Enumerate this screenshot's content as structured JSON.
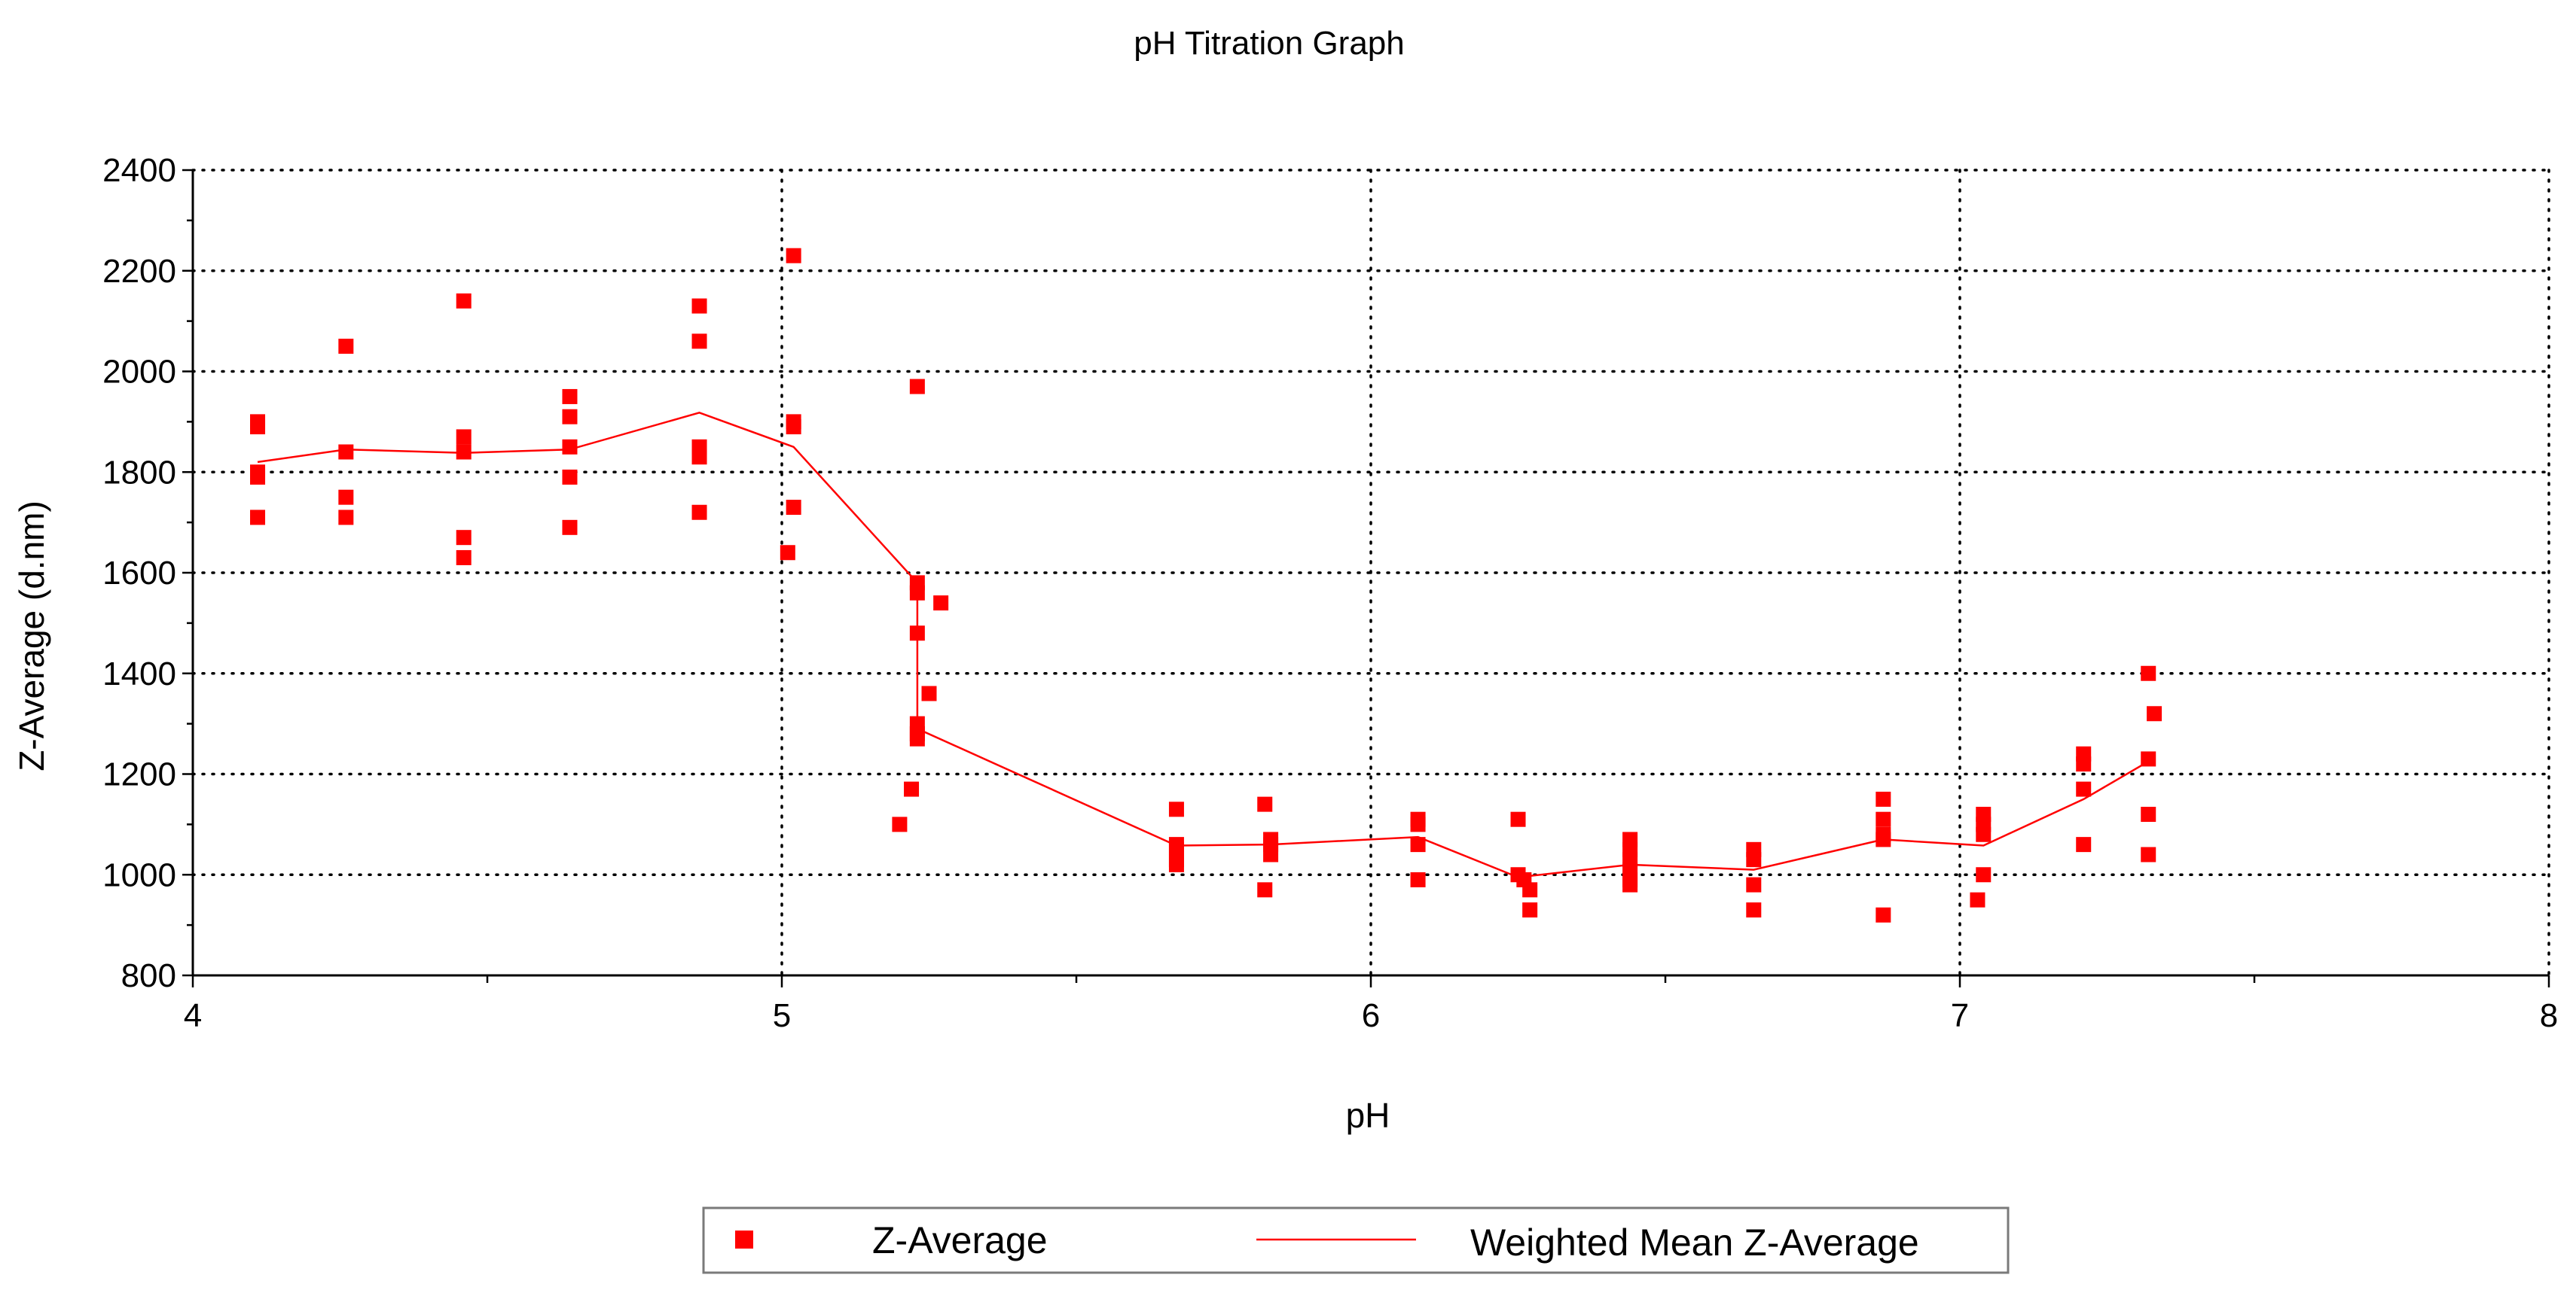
{
  "chart_data": {
    "type": "scatter",
    "title": "pH Titration Graph",
    "xlabel": "pH",
    "ylabel": "Z-Average (d.nm)",
    "xlim": [
      4,
      8
    ],
    "ylim": [
      800,
      2400
    ],
    "xticks": [
      4,
      5,
      6,
      7,
      8
    ],
    "yticks": [
      800,
      1000,
      1200,
      1400,
      1600,
      1800,
      2000,
      2200,
      2400
    ],
    "grid": true,
    "legend_position": "bottom-center",
    "colors": {
      "series": "#ff0000",
      "axis": "#000000",
      "grid": "#000000"
    },
    "series": [
      {
        "name": "Z-Average",
        "kind": "scatter",
        "marker": "square",
        "points": [
          [
            4.11,
            1900
          ],
          [
            4.11,
            1890
          ],
          [
            4.11,
            1800
          ],
          [
            4.11,
            1790
          ],
          [
            4.11,
            1710
          ],
          [
            4.26,
            2050
          ],
          [
            4.26,
            1840
          ],
          [
            4.26,
            1750
          ],
          [
            4.26,
            1710
          ],
          [
            4.46,
            2140
          ],
          [
            4.46,
            1870
          ],
          [
            4.46,
            1840
          ],
          [
            4.46,
            1670
          ],
          [
            4.46,
            1630
          ],
          [
            4.64,
            1950
          ],
          [
            4.64,
            1910
          ],
          [
            4.64,
            1850
          ],
          [
            4.64,
            1790
          ],
          [
            4.64,
            1690
          ],
          [
            4.86,
            2130
          ],
          [
            4.86,
            2060
          ],
          [
            4.86,
            1850
          ],
          [
            4.86,
            1830
          ],
          [
            4.86,
            1720
          ],
          [
            5.02,
            2230
          ],
          [
            5.02,
            1900
          ],
          [
            5.02,
            1890
          ],
          [
            5.02,
            1730
          ],
          [
            5.01,
            1640
          ],
          [
            5.23,
            1970
          ],
          [
            5.23,
            1580
          ],
          [
            5.23,
            1560
          ],
          [
            5.23,
            1480
          ],
          [
            5.25,
            1360
          ],
          [
            5.27,
            1540
          ],
          [
            5.23,
            1300
          ],
          [
            5.23,
            1280
          ],
          [
            5.23,
            1270
          ],
          [
            5.22,
            1170
          ],
          [
            5.2,
            1100
          ],
          [
            5.67,
            1130
          ],
          [
            5.67,
            1060
          ],
          [
            5.67,
            1050
          ],
          [
            5.67,
            1030
          ],
          [
            5.67,
            1020
          ],
          [
            5.82,
            1140
          ],
          [
            5.83,
            1070
          ],
          [
            5.83,
            1060
          ],
          [
            5.83,
            1040
          ],
          [
            5.82,
            970
          ],
          [
            6.08,
            1110
          ],
          [
            6.08,
            1100
          ],
          [
            6.08,
            1060
          ],
          [
            6.08,
            990
          ],
          [
            6.25,
            1110
          ],
          [
            6.25,
            1000
          ],
          [
            6.26,
            990
          ],
          [
            6.27,
            970
          ],
          [
            6.27,
            930
          ],
          [
            6.44,
            1070
          ],
          [
            6.44,
            1050
          ],
          [
            6.44,
            1030
          ],
          [
            6.44,
            1010
          ],
          [
            6.44,
            990
          ],
          [
            6.44,
            980
          ],
          [
            6.65,
            1050
          ],
          [
            6.65,
            1030
          ],
          [
            6.65,
            980
          ],
          [
            6.65,
            930
          ],
          [
            6.87,
            1150
          ],
          [
            6.87,
            1110
          ],
          [
            6.87,
            1080
          ],
          [
            6.87,
            1070
          ],
          [
            6.87,
            920
          ],
          [
            7.04,
            1120
          ],
          [
            7.04,
            1100
          ],
          [
            7.04,
            1080
          ],
          [
            7.04,
            1000
          ],
          [
            7.03,
            950
          ],
          [
            7.21,
            1240
          ],
          [
            7.21,
            1220
          ],
          [
            7.21,
            1170
          ],
          [
            7.21,
            1060
          ],
          [
            7.32,
            1400
          ],
          [
            7.33,
            1320
          ],
          [
            7.32,
            1230
          ],
          [
            7.32,
            1120
          ],
          [
            7.32,
            1040
          ]
        ]
      },
      {
        "name": "Weighted Mean Z-Average",
        "kind": "line",
        "points": [
          [
            4.11,
            1820
          ],
          [
            4.26,
            1845
          ],
          [
            4.46,
            1838
          ],
          [
            4.64,
            1845
          ],
          [
            4.86,
            1918
          ],
          [
            5.02,
            1850
          ],
          [
            5.23,
            1580
          ],
          [
            5.23,
            1290
          ],
          [
            5.67,
            1058
          ],
          [
            5.83,
            1060
          ],
          [
            6.08,
            1075
          ],
          [
            6.25,
            995
          ],
          [
            6.44,
            1020
          ],
          [
            6.65,
            1010
          ],
          [
            6.87,
            1070
          ],
          [
            7.04,
            1058
          ],
          [
            7.21,
            1150
          ],
          [
            7.32,
            1225
          ]
        ]
      }
    ]
  }
}
